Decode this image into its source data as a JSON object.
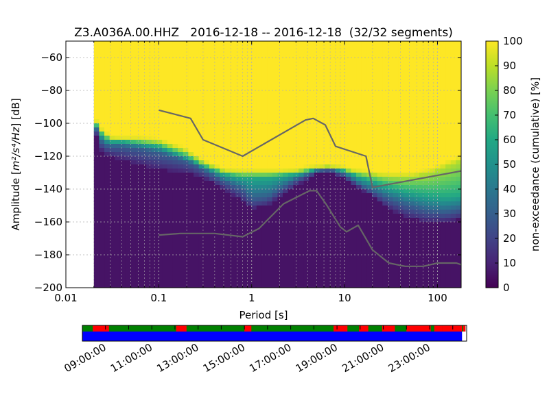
{
  "chart_data": [
    {
      "type": "heatmap",
      "title": "Z3.A036A.00.HHZ   2016-12-18 -- 2016-12-18  (32/32 segments)",
      "xlabel": "Period [s]",
      "ylabel": "Amplitude [m^2/s^4/Hz] [dB]",
      "ylabel_parts": {
        "lead": "Amplitude [",
        "math": "m²/s⁴/Hz",
        "tail": "] [dB]"
      },
      "xscale": "log",
      "xlim": [
        0.01,
        180
      ],
      "ylim": [
        -200,
        -50
      ],
      "x_ticks": [
        "0.01",
        "0.1",
        "1",
        "10",
        "100"
      ],
      "y_ticks": [
        "-60",
        "-80",
        "-100",
        "-120",
        "-140",
        "-160",
        "-180",
        "-200"
      ],
      "grid": true,
      "colorbar": {
        "label": "non-exceedance (cumulative) [%]",
        "range": [
          0,
          100
        ],
        "ticks": [
          "0",
          "10",
          "20",
          "30",
          "40",
          "50",
          "60",
          "70",
          "80",
          "90",
          "100"
        ]
      },
      "data_start_period": 0.02,
      "quantile_bands": {
        "period": [
          0.02,
          0.022,
          0.025,
          0.03,
          0.04,
          0.06,
          0.1,
          0.2,
          0.3,
          0.5,
          0.8,
          1,
          1.5,
          2,
          3,
          5,
          7,
          10,
          15,
          20,
          30,
          50,
          80,
          120,
          180
        ],
        "p10": [
          -99,
          -112,
          -118,
          -120,
          -122,
          -125,
          -128,
          -130,
          -133,
          -140,
          -148,
          -152,
          -150,
          -145,
          -138,
          -131,
          -130,
          -134,
          -140,
          -145,
          -152,
          -158,
          -160,
          -160,
          -158
        ],
        "p30": [
          -100,
          -106,
          -113,
          -114,
          -114,
          -115,
          -118,
          -123,
          -128,
          -135,
          -140,
          -146,
          -145,
          -140,
          -134,
          -129,
          -128,
          -131,
          -138,
          -141,
          -146,
          -150,
          -153,
          -154,
          -152
        ],
        "p60": [
          -99,
          -103,
          -108,
          -111,
          -111,
          -112,
          -114,
          -121,
          -126,
          -131,
          -133,
          -133,
          -133,
          -132,
          -131,
          -128,
          -127,
          -129,
          -133,
          -135,
          -139,
          -142,
          -144,
          -145,
          -144
        ],
        "p90": [
          -98,
          -101,
          -106,
          -109,
          -110,
          -110,
          -111,
          -117,
          -124,
          -129,
          -130,
          -130,
          -130,
          -130,
          -129,
          -127,
          -126,
          -128,
          -130,
          -131,
          -132,
          -132,
          -130,
          -126,
          -122
        ]
      },
      "series": [
        {
          "name": "",
          "x": [
            0.1,
            0.22,
            0.3,
            0.8,
            3.8,
            4.6,
            6.2,
            8,
            17,
            20,
            180
          ],
          "values": [
            -92,
            -97,
            -110,
            -120,
            -98,
            -97,
            -101,
            -114,
            -120,
            -139,
            -129
          ]
        },
        {
          "name": "",
          "x": [
            0.1,
            0.17,
            0.4,
            0.8,
            1.2,
            2.2,
            4.2,
            5,
            6.3,
            9,
            10.5,
            14,
            20,
            30,
            45,
            70,
            100,
            160,
            180
          ],
          "values": [
            -168,
            -167,
            -167,
            -169,
            -164,
            -149,
            -141,
            -141,
            -149,
            -163,
            -166,
            -162,
            -177,
            -185,
            -187,
            -187,
            -185,
            -185,
            -186
          ]
        }
      ]
    },
    {
      "type": "timeline",
      "x_ticks": [
        "09:00:00",
        "11:00:00",
        "13:00:00",
        "15:00:00",
        "17:00:00",
        "19:00:00",
        "21:00:00",
        "23:00:00"
      ],
      "start_hour": 8.0,
      "end_hour": 24.6,
      "segment_gaps_hours": [
        [
          8.45,
          9.15
        ],
        [
          12.05,
          12.5
        ],
        [
          15.0,
          15.3
        ],
        [
          18.85,
          19.45
        ],
        [
          19.95,
          20.35
        ],
        [
          20.95,
          21.5
        ],
        [
          22.0,
          23.05
        ],
        [
          23.2,
          23.55
        ],
        [
          23.55,
          24.4
        ],
        [
          24.45,
          24.55
        ]
      ],
      "data_end_hour": 24.4,
      "colors": {
        "ok": "#008000",
        "gap": "#ff0000",
        "data": "#0000ff"
      }
    }
  ]
}
